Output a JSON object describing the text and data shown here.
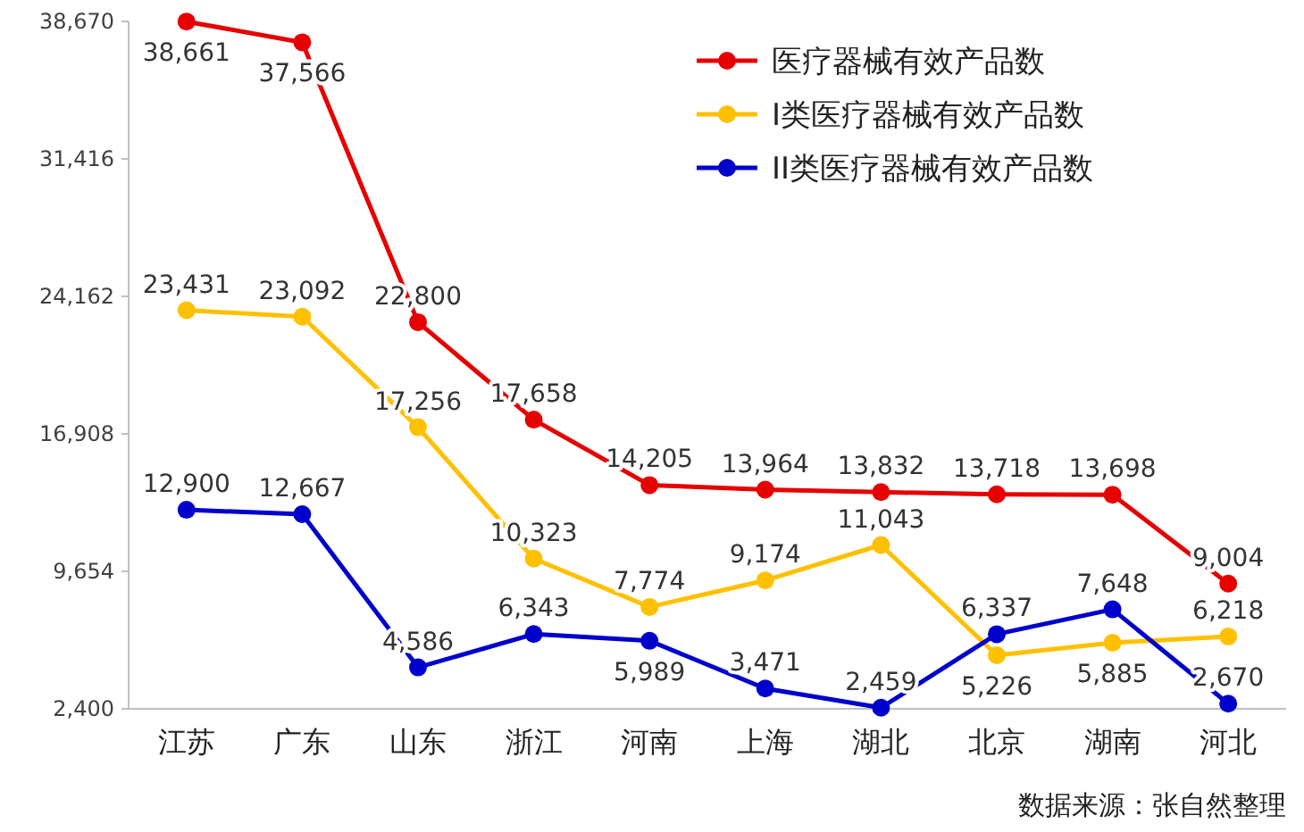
{
  "chart_data": {
    "type": "line",
    "categories": [
      "江苏",
      "广东",
      "山东",
      "浙江",
      "河南",
      "上海",
      "湖北",
      "北京",
      "湖南",
      "河北"
    ],
    "series": [
      {
        "name": "医疗器械有效产品数",
        "color": "#e60000",
        "values": [
          38661,
          37566,
          22800,
          17658,
          14205,
          13964,
          13832,
          13718,
          13698,
          9004
        ],
        "value_labels": [
          "38,661",
          "37,566",
          "22,800",
          "17,658",
          "14,205",
          "13,964",
          "13,832",
          "13,718",
          "13,698",
          "9,004"
        ]
      },
      {
        "name": "I类医疗器械有效产品数",
        "color": "#ffc000",
        "values": [
          23431,
          23092,
          17256,
          10323,
          7774,
          9174,
          11043,
          5226,
          5885,
          6218
        ],
        "value_labels": [
          "23,431",
          "23,092",
          "17,256",
          "10,323",
          "7,774",
          "9,174",
          "11,043",
          "5,226",
          "5,885",
          "6,218"
        ]
      },
      {
        "name": "II类医疗器械有效产品数",
        "color": "#0000cc",
        "values": [
          12900,
          12667,
          4586,
          6343,
          5989,
          3471,
          2459,
          6337,
          7648,
          2670
        ],
        "value_labels": [
          "12,900",
          "12,667",
          "4,586",
          "6,343",
          "5,989",
          "3,471",
          "2,459",
          "6,337",
          "7,648",
          "2,670"
        ]
      }
    ],
    "ylim": [
      2400,
      38670
    ],
    "yticks": [
      {
        "value": 2400,
        "label": "2,400"
      },
      {
        "value": 9654,
        "label": "9,654"
      },
      {
        "value": 16908,
        "label": "16,908"
      },
      {
        "value": 24162,
        "label": "24,162"
      },
      {
        "value": 31416,
        "label": "31,416"
      },
      {
        "value": 38670,
        "label": "38,670"
      }
    ],
    "marker": "circle",
    "line_style": "solid",
    "grid": false,
    "legend": "top right",
    "annotations": [
      "数据来源：张自然整理"
    ]
  }
}
